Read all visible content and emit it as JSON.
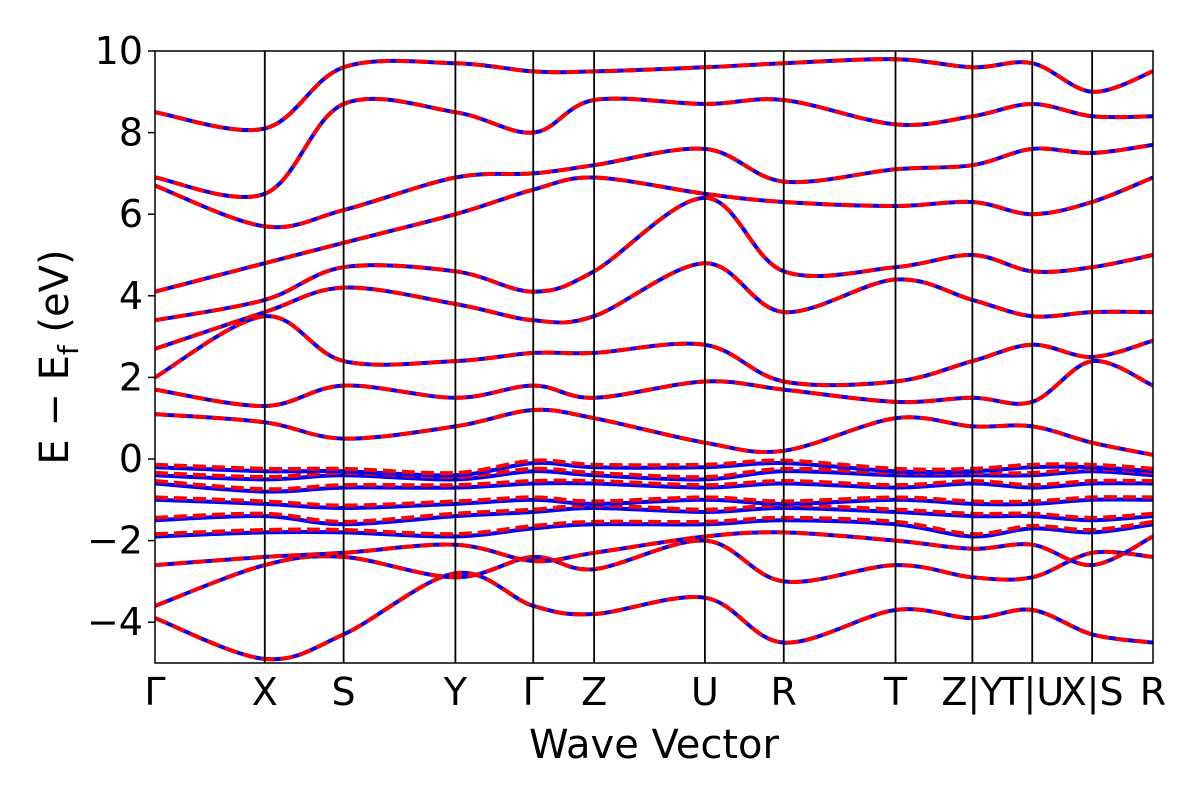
{
  "chart_data": {
    "type": "line",
    "title": "",
    "xlabel": "Wave Vector",
    "ylabel": "E − E_f (eV)",
    "ylabel_parts": {
      "main": "E − E",
      "sub": "f",
      "unit": " (eV)"
    },
    "ylim": [
      -5,
      10
    ],
    "yticks": [
      -4,
      -2,
      0,
      2,
      4,
      6,
      8,
      10
    ],
    "ytick_labels": [
      "−4",
      "−2",
      "0",
      "2",
      "4",
      "6",
      "8",
      "10"
    ],
    "xlim": [
      0,
      1
    ],
    "kpoints": [
      {
        "label": "Γ",
        "x": 0.0
      },
      {
        "label": "X",
        "x": 0.11
      },
      {
        "label": "S",
        "x": 0.189
      },
      {
        "label": "Y",
        "x": 0.301
      },
      {
        "label": "Γ",
        "x": 0.379
      },
      {
        "label": "Z",
        "x": 0.44
      },
      {
        "label": "U",
        "x": 0.551
      },
      {
        "label": "R",
        "x": 0.63
      },
      {
        "label": "T",
        "x": 0.742
      },
      {
        "label": "Z|Y",
        "x": 0.819
      },
      {
        "label": "T|U",
        "x": 0.879
      },
      {
        "label": "X|S",
        "x": 0.939
      },
      {
        "label": "R",
        "x": 1.0
      }
    ],
    "series_styles": [
      {
        "color": "#0000ff",
        "dash": "solid"
      },
      {
        "color": "#ff0000",
        "dash": "dashed"
      }
    ],
    "bands_approx_eV": {
      "x": [
        0.0,
        0.11,
        0.189,
        0.301,
        0.379,
        0.44,
        0.551,
        0.63,
        0.742,
        0.819,
        0.879,
        0.939,
        1.0
      ],
      "energies": [
        [
          -3.9,
          -4.9,
          -4.3,
          -2.8,
          -3.6,
          -3.8,
          -3.4,
          -4.5,
          -3.7,
          -3.9,
          -3.7,
          -4.3,
          -4.5
        ],
        [
          -3.6,
          -2.6,
          -2.4,
          -2.9,
          -2.4,
          -2.7,
          -2.0,
          -3.0,
          -2.6,
          -2.9,
          -2.9,
          -2.3,
          -2.4
        ],
        [
          -2.6,
          -2.4,
          -2.3,
          -2.1,
          -2.5,
          -2.3,
          -1.9,
          -1.8,
          -2.0,
          -2.2,
          -2.1,
          -2.6,
          -1.9
        ],
        [
          -1.9,
          -1.8,
          -1.8,
          -1.9,
          -1.7,
          -1.6,
          -1.6,
          -1.5,
          -1.6,
          -1.9,
          -1.7,
          -1.8,
          -1.6
        ],
        [
          -1.5,
          -1.4,
          -1.6,
          -1.4,
          -1.3,
          -1.2,
          -1.3,
          -1.2,
          -1.3,
          -1.4,
          -1.4,
          -1.5,
          -1.4
        ],
        [
          -1.0,
          -1.1,
          -1.2,
          -1.1,
          -1.0,
          -1.1,
          -1.0,
          -1.1,
          -1.0,
          -1.1,
          -1.1,
          -1.0,
          -1.0
        ],
        [
          -0.6,
          -0.8,
          -0.7,
          -0.7,
          -0.6,
          -0.6,
          -0.7,
          -0.6,
          -0.7,
          -0.6,
          -0.7,
          -0.6,
          -0.6
        ],
        [
          -0.4,
          -0.5,
          -0.4,
          -0.5,
          -0.3,
          -0.4,
          -0.5,
          -0.3,
          -0.4,
          -0.4,
          -0.4,
          -0.3,
          -0.4
        ],
        [
          -0.2,
          -0.3,
          -0.3,
          -0.4,
          -0.1,
          -0.2,
          -0.2,
          -0.1,
          -0.3,
          -0.3,
          -0.2,
          -0.2,
          -0.3
        ],
        [
          1.1,
          0.9,
          0.5,
          0.8,
          1.2,
          1.0,
          0.4,
          0.2,
          1.0,
          0.8,
          0.8,
          0.4,
          0.1
        ],
        [
          1.7,
          1.3,
          1.8,
          1.5,
          1.8,
          1.5,
          1.9,
          1.7,
          1.4,
          1.5,
          1.4,
          2.4,
          1.8
        ],
        [
          2.0,
          3.5,
          2.4,
          2.4,
          2.6,
          2.6,
          2.8,
          1.9,
          1.9,
          2.4,
          2.8,
          2.5,
          2.9
        ],
        [
          2.7,
          3.6,
          4.2,
          3.8,
          3.4,
          3.5,
          4.8,
          3.6,
          4.4,
          3.9,
          3.5,
          3.6,
          3.6
        ],
        [
          3.4,
          3.9,
          4.7,
          4.6,
          4.1,
          4.6,
          6.4,
          4.6,
          4.7,
          5.0,
          4.6,
          4.7,
          5.0
        ],
        [
          4.1,
          4.8,
          5.3,
          6.0,
          6.6,
          6.9,
          6.5,
          6.3,
          6.2,
          6.3,
          6.0,
          6.3,
          6.9
        ],
        [
          6.7,
          5.7,
          6.1,
          6.9,
          7.0,
          7.2,
          7.6,
          6.8,
          7.1,
          7.2,
          7.6,
          7.5,
          7.7
        ],
        [
          6.9,
          6.5,
          8.7,
          8.5,
          8.0,
          8.8,
          8.7,
          8.8,
          8.2,
          8.4,
          8.7,
          8.4,
          8.4
        ],
        [
          8.5,
          8.1,
          9.6,
          9.7,
          9.5,
          9.5,
          9.6,
          9.7,
          9.8,
          9.6,
          9.7,
          9.0,
          9.5
        ]
      ]
    }
  }
}
